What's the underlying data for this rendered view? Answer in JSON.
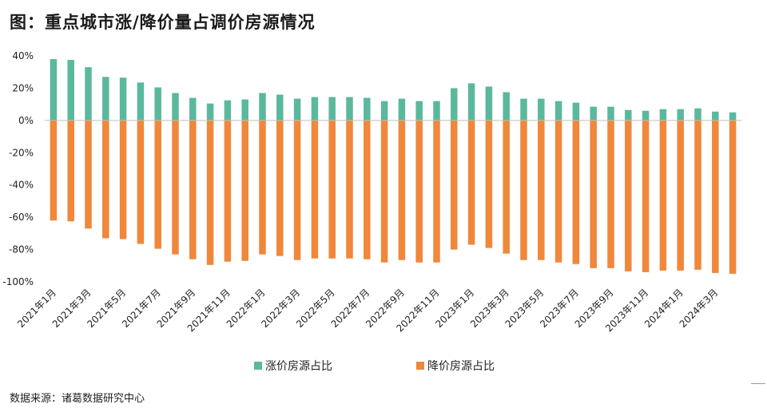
{
  "header": {
    "title": "图：重点城市涨/降价量占调价房源情况"
  },
  "footer": {
    "source": "数据来源：诸葛数据研究中心"
  },
  "colors": {
    "up": "#5bb89c",
    "down": "#f0873a",
    "axis": "#bfbfbf"
  },
  "chart_data": {
    "type": "bar",
    "title": "图：重点城市涨/降价量占调价房源情况",
    "xlabel": "",
    "ylabel": "",
    "ylim": [
      -100,
      40
    ],
    "yticks": [
      "40%",
      "20%",
      "0%",
      "-20%",
      "-40%",
      "-60%",
      "-80%",
      "-100%"
    ],
    "legend": "bottom",
    "grid": false,
    "categories": [
      "2021年1月",
      "2021年2月",
      "2021年3月",
      "2021年4月",
      "2021年5月",
      "2021年6月",
      "2021年7月",
      "2021年8月",
      "2021年9月",
      "2021年10月",
      "2021年11月",
      "2021年12月",
      "2022年1月",
      "2022年2月",
      "2022年3月",
      "2022年4月",
      "2022年5月",
      "2022年6月",
      "2022年7月",
      "2022年8月",
      "2022年9月",
      "2022年10月",
      "2022年11月",
      "2022年12月",
      "2023年1月",
      "2023年2月",
      "2023年3月",
      "2023年4月",
      "2023年5月",
      "2023年6月",
      "2023年7月",
      "2023年8月",
      "2023年9月",
      "2023年10月",
      "2023年11月",
      "2023年12月",
      "2024年1月",
      "2024年2月",
      "2024年3月",
      "2024年4月"
    ],
    "shown_tick_labels": [
      "2021年1月",
      "2021年3月",
      "2021年5月",
      "2021年7月",
      "2021年9月",
      "2021年11月",
      "2022年1月",
      "2022年3月",
      "2022年5月",
      "2022年7月",
      "2022年9月",
      "2022年11月",
      "2023年1月",
      "2023年3月",
      "2023年5月",
      "2023年7月",
      "2023年9月",
      "2023年11月",
      "2024年1月",
      "2024年3月"
    ],
    "series": [
      {
        "name": "涨价房源占比",
        "color": "#5bb89c",
        "values": [
          38,
          37.5,
          33,
          27,
          26.5,
          23.5,
          20.5,
          17,
          14,
          10.5,
          12.5,
          13,
          17,
          16,
          13.5,
          14.5,
          14.5,
          14.5,
          14,
          12,
          13.5,
          12,
          12,
          20,
          23,
          21,
          17.5,
          13.5,
          13.5,
          12,
          11,
          8.5,
          8.5,
          6.5,
          6,
          7,
          7,
          7.5,
          5.5,
          5
        ]
      },
      {
        "name": "降价房源占比",
        "color": "#f0873a",
        "values": [
          -62,
          -62.5,
          -67,
          -73,
          -73.5,
          -76.5,
          -79.5,
          -83,
          -86,
          -89.5,
          -87.5,
          -87,
          -83,
          -84,
          -86.5,
          -85.5,
          -85.5,
          -85.5,
          -86,
          -88,
          -86.5,
          -88,
          -88,
          -80,
          -77,
          -79,
          -82.5,
          -86.5,
          -86.5,
          -88,
          -89,
          -91.5,
          -91.5,
          -93.5,
          -94,
          -93,
          -93,
          -92.5,
          -94.5,
          -95
        ]
      }
    ]
  }
}
